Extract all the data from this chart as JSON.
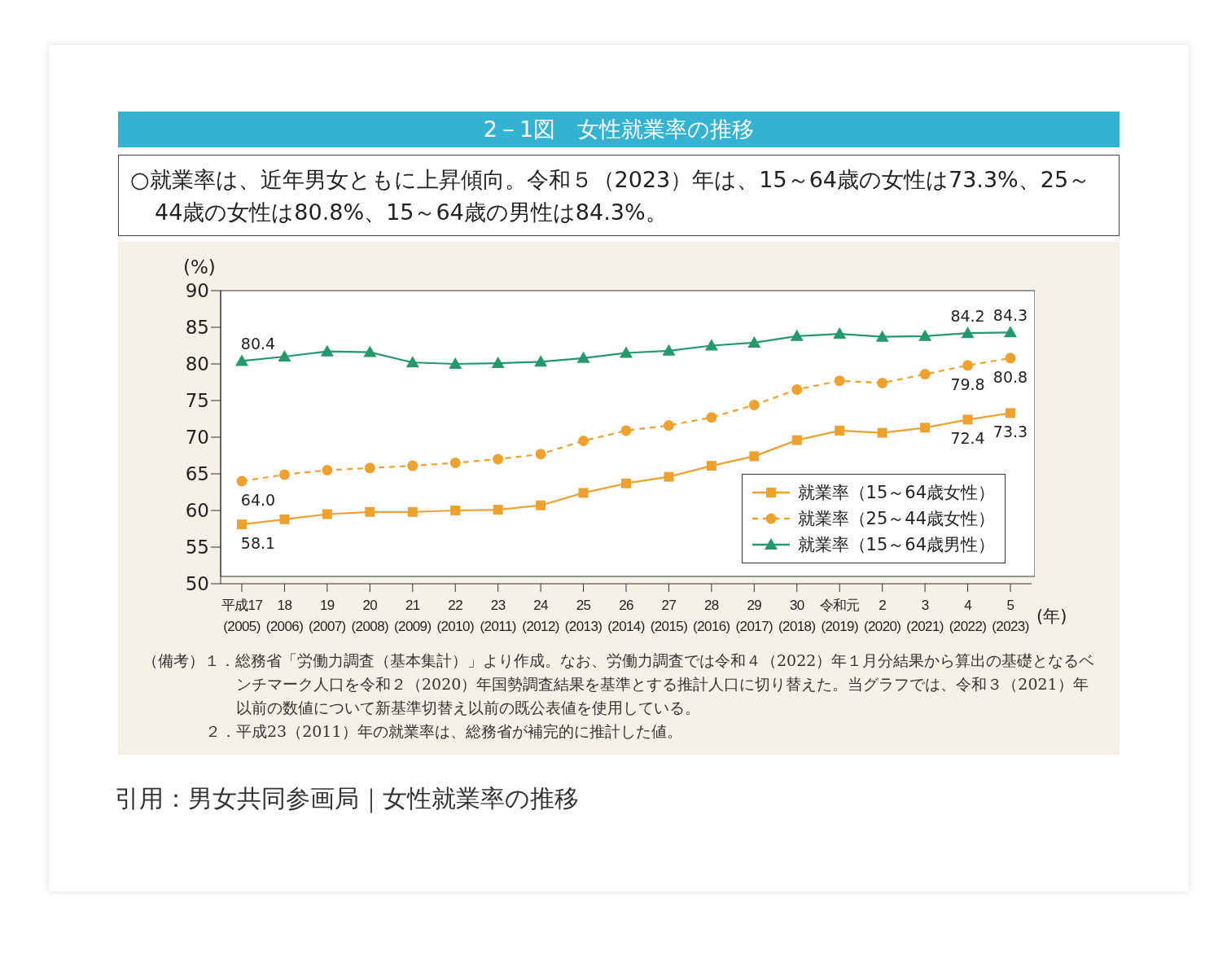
{
  "chart_data": {
    "type": "line",
    "title": "2－1図　女性就業率の推移",
    "subtitle": "○就業率は、近年男女ともに上昇傾向。令和５（2023）年は、15～64歳の女性は73.3%、25～44歳の女性は80.8%、15～64歳の男性は84.3%。",
    "ylabel": "(%)",
    "xlabel": "(年)",
    "categories": [
      "平成17\n(2005)",
      "18\n(2006)",
      "19\n(2007)",
      "20\n(2008)",
      "21\n(2009)",
      "22\n(2010)",
      "23\n(2011)",
      "24\n(2012)",
      "25\n(2013)",
      "26\n(2014)",
      "27\n(2015)",
      "28\n(2016)",
      "29\n(2017)",
      "30\n(2018)",
      "令和元\n(2019)",
      "2\n(2020)",
      "3\n(2021)",
      "4\n(2022)",
      "5\n(2023)"
    ],
    "series": [
      {
        "name": "就業率（15～64歳女性）",
        "color": "#eea12e",
        "marker": "square",
        "line_style": "solid",
        "values": [
          58.1,
          58.8,
          59.5,
          59.8,
          59.8,
          60.0,
          60.1,
          60.7,
          62.4,
          63.7,
          64.6,
          66.1,
          67.4,
          69.6,
          70.9,
          70.6,
          71.3,
          72.4,
          73.3
        ],
        "value_labels": [
          "58.1",
          null,
          null,
          null,
          null,
          null,
          null,
          null,
          null,
          null,
          null,
          null,
          null,
          null,
          null,
          null,
          null,
          "72.4",
          "73.3"
        ]
      },
      {
        "name": "就業率（25～44歳女性）",
        "color": "#eea12e",
        "marker": "circle",
        "line_style": "dashed",
        "values": [
          64.0,
          64.9,
          65.5,
          65.8,
          66.1,
          66.5,
          67.0,
          67.7,
          69.5,
          70.9,
          71.6,
          72.7,
          74.4,
          76.5,
          77.7,
          77.4,
          78.6,
          79.8,
          80.8
        ],
        "value_labels": [
          "64.0",
          null,
          null,
          null,
          null,
          null,
          null,
          null,
          null,
          null,
          null,
          null,
          null,
          null,
          null,
          null,
          null,
          "79.8",
          "80.8"
        ]
      },
      {
        "name": "就業率（15～64歳男性）",
        "color": "#23996c",
        "marker": "triangle",
        "line_style": "solid",
        "values": [
          80.4,
          81.0,
          81.7,
          81.6,
          80.2,
          80.0,
          80.1,
          80.3,
          80.8,
          81.5,
          81.8,
          82.5,
          82.9,
          83.8,
          84.1,
          83.7,
          83.8,
          84.2,
          84.3
        ],
        "value_labels": [
          "80.4",
          null,
          null,
          null,
          null,
          null,
          null,
          null,
          null,
          null,
          null,
          null,
          null,
          null,
          null,
          null,
          null,
          "84.2",
          "84.3"
        ]
      }
    ],
    "ylim": [
      50,
      90
    ],
    "yticks": [
      50,
      55,
      60,
      65,
      70,
      75,
      80,
      85,
      90
    ],
    "grid": false,
    "legend": "bottom right",
    "annotations": [
      "（備考）１．総務省「労働力調査（基本集計）」より作成。なお、労働力調査では令和４（2022）年１月分結果から算出の基礎となるベンチマーク人口を令和２（2020）年国勢調査結果を基準とする推計人口に切り替えた。当グラフでは、令和３（2021）年以前の数値について新基準切替え以前の既公表値を使用している。",
      "２．平成23（2011）年の就業率は、総務省が補完的に推計した値。",
      "引用：男女共同参画局｜女性就業率の推移"
    ]
  }
}
